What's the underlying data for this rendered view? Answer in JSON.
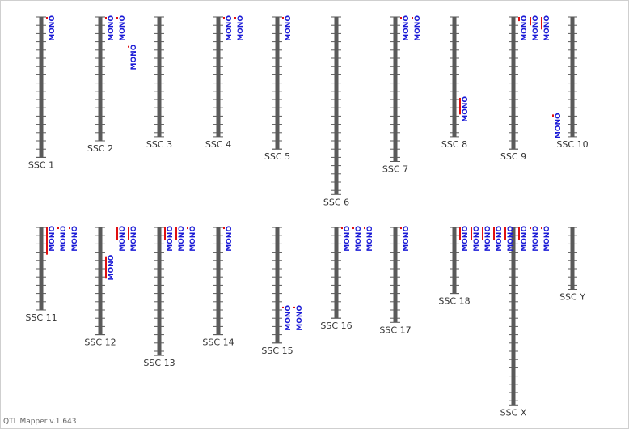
{
  "footer": {
    "version": "QTL Mapper v.1.643"
  },
  "colors": {
    "chromosome": "#5a5a5a",
    "qtl_bar": "#e01010",
    "qtl_text": "#1a1ad6",
    "label": "#333333"
  },
  "row1_axis_top_cM": 0,
  "chromosomes": [
    {
      "name": "SSC 1",
      "row": 1,
      "length_cM": 170
    },
    {
      "name": "SSC 2",
      "row": 1,
      "length_cM": 150
    },
    {
      "name": "SSC 3",
      "row": 1,
      "length_cM": 145
    },
    {
      "name": "SSC 4",
      "row": 1,
      "length_cM": 145
    },
    {
      "name": "SSC 5",
      "row": 1,
      "length_cM": 160
    },
    {
      "name": "SSC 6",
      "row": 1,
      "length_cM": 215
    },
    {
      "name": "SSC 7",
      "row": 1,
      "length_cM": 175
    },
    {
      "name": "SSC 8",
      "row": 1,
      "length_cM": 145
    },
    {
      "name": "SSC 9",
      "row": 1,
      "length_cM": 160
    },
    {
      "name": "SSC 10",
      "row": 1,
      "length_cM": 145
    },
    {
      "name": "SSC 11",
      "row": 2,
      "length_cM": 100
    },
    {
      "name": "SSC 12",
      "row": 2,
      "length_cM": 130
    },
    {
      "name": "SSC 13",
      "row": 2,
      "length_cM": 155
    },
    {
      "name": "SSC 14",
      "row": 2,
      "length_cM": 130
    },
    {
      "name": "SSC 15",
      "row": 2,
      "length_cM": 140
    },
    {
      "name": "SSC 16",
      "row": 2,
      "length_cM": 110
    },
    {
      "name": "SSC 17",
      "row": 2,
      "length_cM": 115
    },
    {
      "name": "SSC 18",
      "row": 2,
      "length_cM": 80
    },
    {
      "name": "SSC X",
      "row": 2,
      "length_cM": 215
    },
    {
      "name": "SSC Y",
      "row": 2,
      "length_cM": 75
    }
  ],
  "qtls": [
    {
      "chr": "SSC 1",
      "label": "MONO",
      "start_cM": 0,
      "end_cM": 2
    },
    {
      "chr": "SSC 2",
      "label": "MONO",
      "start_cM": 0,
      "end_cM": 2
    },
    {
      "chr": "SSC 2",
      "label": "MONO",
      "start_cM": 0,
      "end_cM": 2
    },
    {
      "chr": "SSC 2",
      "label": "MONO",
      "start_cM": 35,
      "end_cM": 37
    },
    {
      "chr": "SSC 4",
      "label": "MONO",
      "start_cM": 0,
      "end_cM": 2
    },
    {
      "chr": "SSC 4",
      "label": "MONO",
      "start_cM": 0,
      "end_cM": 2
    },
    {
      "chr": "SSC 5",
      "label": "MONO",
      "start_cM": 0,
      "end_cM": 2
    },
    {
      "chr": "SSC 7",
      "label": "MONO",
      "start_cM": 0,
      "end_cM": 2
    },
    {
      "chr": "SSC 7",
      "label": "MONO",
      "start_cM": 0,
      "end_cM": 2
    },
    {
      "chr": "SSC 8",
      "label": "MONO",
      "start_cM": 98,
      "end_cM": 118
    },
    {
      "chr": "SSC 9",
      "label": "MONO",
      "start_cM": 0,
      "end_cM": 5
    },
    {
      "chr": "SSC 9",
      "label": "MONO",
      "start_cM": 0,
      "end_cM": 10
    },
    {
      "chr": "SSC 9",
      "label": "MONO",
      "start_cM": 0,
      "end_cM": 15
    },
    {
      "chr": "SSC 9",
      "label": "MONO",
      "start_cM": 118,
      "end_cM": 121
    },
    {
      "chr": "SSC 11",
      "label": "MONO",
      "start_cM": 0,
      "end_cM": 33
    },
    {
      "chr": "SSC 11",
      "label": "MONO",
      "start_cM": 0,
      "end_cM": 2
    },
    {
      "chr": "SSC 11",
      "label": "MONO",
      "start_cM": 0,
      "end_cM": 2
    },
    {
      "chr": "SSC 12",
      "label": "MONO",
      "start_cM": 35,
      "end_cM": 62
    },
    {
      "chr": "SSC 12",
      "label": "MONO",
      "start_cM": 0,
      "end_cM": 15
    },
    {
      "chr": "SSC 12",
      "label": "MONO",
      "start_cM": 0,
      "end_cM": 15
    },
    {
      "chr": "SSC 13",
      "label": "MONO",
      "start_cM": 0,
      "end_cM": 15
    },
    {
      "chr": "SSC 13",
      "label": "MONO",
      "start_cM": 0,
      "end_cM": 15
    },
    {
      "chr": "SSC 13",
      "label": "MONO",
      "start_cM": 0,
      "end_cM": 2
    },
    {
      "chr": "SSC 14",
      "label": "MONO",
      "start_cM": 0,
      "end_cM": 2
    },
    {
      "chr": "SSC 15",
      "label": "MONO",
      "start_cM": 96,
      "end_cM": 98
    },
    {
      "chr": "SSC 15",
      "label": "MONO",
      "start_cM": 96,
      "end_cM": 98
    },
    {
      "chr": "SSC 16",
      "label": "MONO",
      "start_cM": 0,
      "end_cM": 2
    },
    {
      "chr": "SSC 16",
      "label": "MONO",
      "start_cM": 0,
      "end_cM": 2
    },
    {
      "chr": "SSC 16",
      "label": "MONO",
      "start_cM": 0,
      "end_cM": 2
    },
    {
      "chr": "SSC 17",
      "label": "MONO",
      "start_cM": 0,
      "end_cM": 2
    },
    {
      "chr": "SSC 18",
      "label": "MONO",
      "start_cM": 0,
      "end_cM": 15
    },
    {
      "chr": "SSC 18",
      "label": "MONO",
      "start_cM": 0,
      "end_cM": 15
    },
    {
      "chr": "SSC 18",
      "label": "MONO",
      "start_cM": 0,
      "end_cM": 15
    },
    {
      "chr": "SSC 18",
      "label": "MONO",
      "start_cM": 0,
      "end_cM": 15
    },
    {
      "chr": "SSC 18",
      "label": "MONO",
      "start_cM": 0,
      "end_cM": 15
    },
    {
      "chr": "SSC X",
      "label": "MONO",
      "start_cM": 0,
      "end_cM": 15
    },
    {
      "chr": "SSC X",
      "label": "MONO",
      "start_cM": 0,
      "end_cM": 2
    },
    {
      "chr": "SSC X",
      "label": "MONO",
      "start_cM": 0,
      "end_cM": 2
    }
  ]
}
